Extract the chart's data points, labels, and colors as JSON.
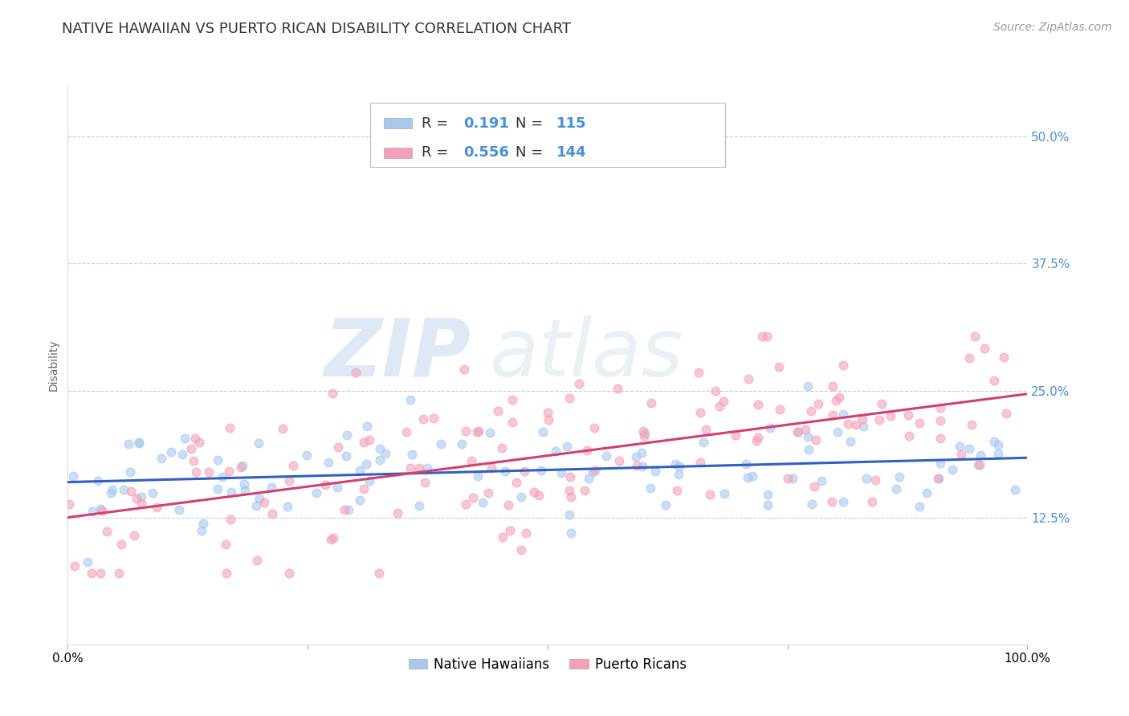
{
  "title": "NATIVE HAWAIIAN VS PUERTO RICAN DISABILITY CORRELATION CHART",
  "source": "Source: ZipAtlas.com",
  "ylabel": "Disability",
  "color_hawaiian": "#a8c8f0",
  "color_puerto": "#f4a0b8",
  "line_color_hawaiian": "#3060c0",
  "line_color_puerto": "#d04070",
  "ytick_labels": [
    "12.5%",
    "25.0%",
    "37.5%",
    "50.0%"
  ],
  "ytick_values": [
    0.125,
    0.25,
    0.375,
    0.5
  ],
  "xlim": [
    0.0,
    1.0
  ],
  "ylim": [
    0.0,
    0.55
  ],
  "watermark_zip": "ZIP",
  "watermark_atlas": "atlas",
  "seed_hawaiian": 42,
  "seed_puerto": 7,
  "n_hawaiian": 115,
  "n_puerto": 144,
  "r_hawaiian": 0.191,
  "r_puerto": 0.556,
  "scatter_alpha": 0.6,
  "scatter_size": 60,
  "background_color": "#ffffff",
  "grid_color": "#cccccc",
  "title_fontsize": 13,
  "label_fontsize": 10,
  "tick_fontsize": 11,
  "source_fontsize": 10,
  "legend_r_color": "#4a90d9",
  "tick_color": "#4a90d9"
}
